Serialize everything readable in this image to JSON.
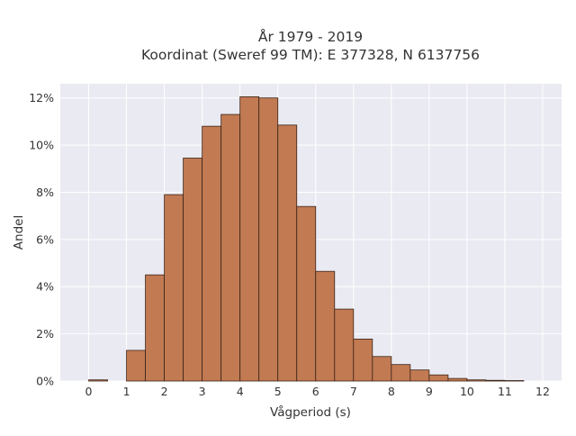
{
  "chart_data": {
    "type": "bar",
    "title_lines": [
      "År 1979 - 2019",
      "Koordinat (Sweref 99 TM): E 377328, N 6137756"
    ],
    "xlabel": "Vågperiod (s)",
    "ylabel": "Andel",
    "x_tick_labels": [
      "0",
      "1",
      "2",
      "3",
      "4",
      "5",
      "6",
      "7",
      "8",
      "9",
      "10",
      "11",
      "12"
    ],
    "y_tick_labels": [
      "0%",
      "2%",
      "4%",
      "6%",
      "8%",
      "10%",
      "12%"
    ],
    "xlim": [
      -0.75,
      12.5
    ],
    "ylim": [
      0,
      12.6
    ],
    "bin_width": 0.5,
    "bins": [
      {
        "x0": 0.0,
        "value": 0.05
      },
      {
        "x0": 0.5,
        "value": 0.0
      },
      {
        "x0": 1.0,
        "value": 1.3
      },
      {
        "x0": 1.5,
        "value": 4.5
      },
      {
        "x0": 2.0,
        "value": 7.9
      },
      {
        "x0": 2.5,
        "value": 9.45
      },
      {
        "x0": 3.0,
        "value": 10.8
      },
      {
        "x0": 3.5,
        "value": 11.3
      },
      {
        "x0": 4.0,
        "value": 12.05
      },
      {
        "x0": 4.5,
        "value": 12.0
      },
      {
        "x0": 5.0,
        "value": 10.85
      },
      {
        "x0": 5.5,
        "value": 7.4
      },
      {
        "x0": 6.0,
        "value": 4.65
      },
      {
        "x0": 6.5,
        "value": 3.05
      },
      {
        "x0": 7.0,
        "value": 1.78
      },
      {
        "x0": 7.5,
        "value": 1.04
      },
      {
        "x0": 8.0,
        "value": 0.7
      },
      {
        "x0": 8.5,
        "value": 0.47
      },
      {
        "x0": 9.0,
        "value": 0.26
      },
      {
        "x0": 9.5,
        "value": 0.11
      },
      {
        "x0": 10.0,
        "value": 0.05
      },
      {
        "x0": 10.5,
        "value": 0.03
      },
      {
        "x0": 11.0,
        "value": 0.02
      }
    ],
    "grid": true,
    "legend": "none",
    "colors": {
      "bar_fill": "#c17a52",
      "bar_edge": "#3b2418",
      "plot_background": "#eaeaf2",
      "grid": "#ffffff",
      "text": "#333333"
    }
  }
}
